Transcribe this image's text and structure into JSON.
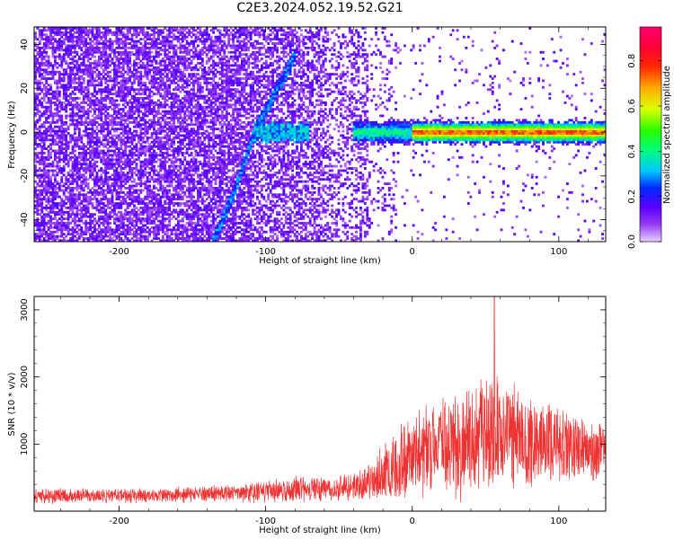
{
  "figure_title": "C2E3.2024.052.19.52.G21",
  "colors": {
    "snr_line": "#ee3333",
    "axis": "#000000"
  },
  "chart_data": [
    {
      "type": "heatmap",
      "xlabel": "Height of straight line (km)",
      "ylabel": "Frequency (Hz)",
      "xlim": [
        -258,
        132
      ],
      "ylim": [
        -50,
        48
      ],
      "x_ticks": [
        -200,
        -100,
        0,
        100
      ],
      "x_tick_labels": [
        "-200",
        "-100",
        "0",
        "100"
      ],
      "y_ticks": [
        -40,
        -20,
        0,
        20,
        40
      ],
      "y_tick_labels": [
        "-40",
        "-20",
        "0",
        "20",
        "40"
      ],
      "colorbar": {
        "label": "Normalized spectral amplitude",
        "range": [
          0,
          0.95
        ],
        "ticks": [
          0.0,
          0.2,
          0.4,
          0.6,
          0.8
        ],
        "tick_labels": [
          "0.0",
          "0.2",
          "0.4",
          "0.6",
          "0.8"
        ],
        "colormap": "gist_rainbow_r"
      },
      "features": {
        "noise_region_x": [
          -258,
          -30
        ],
        "carrier_line_x": [
          -40,
          132
        ],
        "carrier_frequency_hz": 0,
        "diagonal_trace": [
          [
            -136,
            -50
          ],
          [
            -120,
            -25
          ],
          [
            -108,
            0
          ],
          [
            -100,
            10
          ],
          [
            -80,
            35
          ]
        ]
      }
    },
    {
      "type": "line",
      "xlabel": "Height of straight line (km)",
      "ylabel": "SNR (10 * v/v)",
      "xlim": [
        -258,
        132
      ],
      "ylim": [
        0,
        3200
      ],
      "x_ticks": [
        -200,
        -100,
        0,
        100
      ],
      "x_tick_labels": [
        "-200",
        "-100",
        "0",
        "100"
      ],
      "y_ticks": [
        1000,
        2000,
        3000
      ],
      "y_tick_labels": [
        "1000",
        "2000",
        "3000"
      ],
      "series": [
        {
          "x": [
            -258,
            -240,
            -220,
            -200,
            -180,
            -160,
            -140,
            -120,
            -100,
            -80,
            -60,
            -40,
            -30,
            -20,
            -10,
            0,
            10,
            20,
            30,
            40,
            50,
            60,
            70,
            80,
            90,
            100,
            110,
            120,
            132
          ],
          "mean": [
            230,
            230,
            230,
            230,
            235,
            245,
            260,
            270,
            300,
            320,
            340,
            360,
            450,
            560,
            700,
            850,
            900,
            1000,
            1050,
            1100,
            1150,
            1100,
            1050,
            1000,
            1000,
            1000,
            950,
            900,
            900
          ],
          "spread": [
            120,
            110,
            100,
            100,
            100,
            110,
            110,
            120,
            150,
            170,
            180,
            200,
            300,
            400,
            500,
            600,
            650,
            700,
            750,
            800,
            850,
            800,
            750,
            650,
            600,
            550,
            500,
            450,
            400
          ],
          "peak": {
            "x": 56,
            "y": 3200
          }
        }
      ]
    }
  ]
}
